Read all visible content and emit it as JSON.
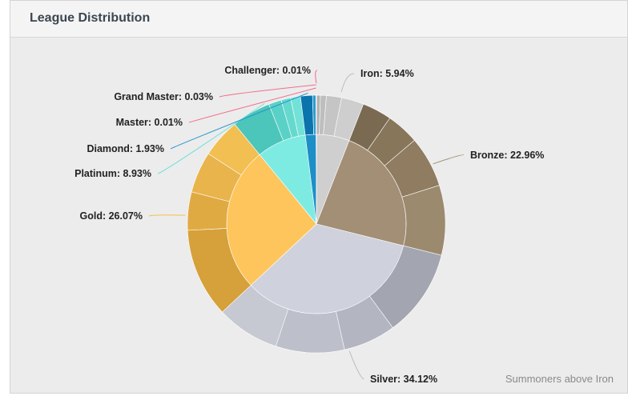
{
  "header": {
    "title": "League Distribution"
  },
  "footnote": "Summoners above Iron",
  "chart_data": {
    "type": "pie",
    "subtype": "sunburst",
    "title": "",
    "series": [
      {
        "name": "Iron",
        "label": "Iron: 5.94%",
        "value": 5.94,
        "inner_color": "#cfcfcf",
        "outer": [
          {
            "value": 0.5,
            "color": "#b2b2b2"
          },
          {
            "value": 0.74,
            "color": "#bebebe"
          },
          {
            "value": 1.9,
            "color": "#c5c5c5"
          },
          {
            "value": 2.8,
            "color": "#cecece"
          }
        ]
      },
      {
        "name": "Bronze",
        "label": "Bronze: 22.96%",
        "value": 22.96,
        "inner_color": "#a38f76",
        "outer": [
          {
            "value": 3.7,
            "color": "#7b6a52"
          },
          {
            "value": 4.1,
            "color": "#877659"
          },
          {
            "value": 6.4,
            "color": "#8f7c61"
          },
          {
            "value": 8.76,
            "color": "#9c8a6e"
          }
        ]
      },
      {
        "name": "Silver",
        "label": "Silver: 34.12%",
        "value": 34.12,
        "inner_color": "#cfd1dc",
        "outer": [
          {
            "value": 11.0,
            "color": "#a3a6b0"
          },
          {
            "value": 6.6,
            "color": "#b3b6c0"
          },
          {
            "value": 8.6,
            "color": "#bdc0ca"
          },
          {
            "value": 7.92,
            "color": "#c6c8d2"
          }
        ]
      },
      {
        "name": "Gold",
        "label": "Gold: 26.07%",
        "value": 26.07,
        "inner_color": "#fec55c",
        "outer": [
          {
            "value": 11.2,
            "color": "#d6a03a"
          },
          {
            "value": 4.8,
            "color": "#e0aa43"
          },
          {
            "value": 5.17,
            "color": "#e8b44b"
          },
          {
            "value": 4.9,
            "color": "#f1bf52"
          }
        ]
      },
      {
        "name": "Platinum",
        "label": "Platinum: 8.93%",
        "value": 8.93,
        "inner_color": "#7eebe3",
        "outer": [
          {
            "value": 4.9,
            "color": "#4cc5ba"
          },
          {
            "value": 1.6,
            "color": "#5ad1c6"
          },
          {
            "value": 1.2,
            "color": "#66d9cf"
          },
          {
            "value": 1.23,
            "color": "#72e2d8"
          }
        ]
      },
      {
        "name": "Diamond",
        "label": "Diamond: 1.93%",
        "value": 1.93,
        "inner_color": "#1d8fc7",
        "outer": [
          {
            "value": 1.5,
            "color": "#0b74ad"
          },
          {
            "value": 0.43,
            "color": "#2e9bd0"
          }
        ]
      },
      {
        "name": "Master",
        "label": "Master: 0.01%",
        "value": 0.01,
        "inner_color": "#333333",
        "outer": [
          {
            "value": 0.01,
            "color": "#333333"
          }
        ]
      },
      {
        "name": "Grand Master",
        "label": "Grand Master: 0.03%",
        "value": 0.03,
        "inner_color": "#555555",
        "outer": [
          {
            "value": 0.03,
            "color": "#555555"
          }
        ]
      },
      {
        "name": "Challenger",
        "label": "Challenger: 0.01%",
        "value": 0.01,
        "inner_color": "#777777",
        "outer": [
          {
            "value": 0.01,
            "color": "#777777"
          }
        ]
      }
    ],
    "label_colors": {
      "Iron": "#bdbdbd",
      "Bronze": "#a08d70",
      "Silver": "#b8bac3",
      "Gold": "#f2bf4c",
      "Platinum": "#6fe0d8",
      "Diamond": "#1f96cf",
      "Master": "#f06e8c",
      "Grand Master": "#f06e8c",
      "Challenger": "#f06e8c"
    },
    "legend": "none"
  }
}
